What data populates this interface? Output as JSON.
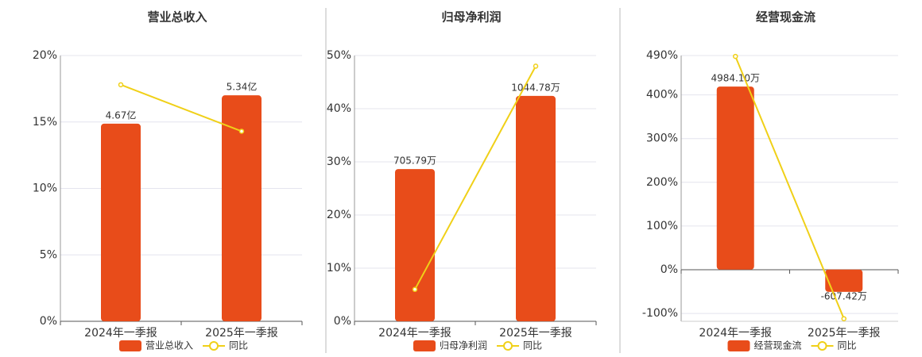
{
  "chart_data": [
    {
      "type": "bar",
      "title": "营业总收入",
      "categories": [
        "2024年一季报",
        "2025年一季报"
      ],
      "series": [
        {
          "name": "营业总收入",
          "color": "#e84c1a",
          "axis": "y2",
          "values": [
            4.67,
            5.34
          ],
          "value_labels": [
            "4.67亿",
            "5.34亿"
          ]
        },
        {
          "name": "同比",
          "type": "line",
          "color": "#f0d018",
          "values": [
            17.8,
            14.3
          ]
        }
      ],
      "ylim": [
        0,
        20
      ],
      "yticks": [
        {
          "value": 0,
          "label": "0%"
        },
        {
          "value": 5,
          "label": "5%"
        },
        {
          "value": 10,
          "label": "10%"
        },
        {
          "value": 15,
          "label": "15%"
        },
        {
          "value": 20,
          "label": "20%"
        }
      ],
      "y2lim": [
        0,
        6.28
      ],
      "grid": true
    },
    {
      "type": "bar",
      "title": "归母净利润",
      "categories": [
        "2024年一季报",
        "2025年一季报"
      ],
      "series": [
        {
          "name": "归母净利润",
          "color": "#e84c1a",
          "axis": "y2",
          "values": [
            705.79,
            1044.78
          ],
          "value_labels": [
            "705.79万",
            "1044.78万"
          ]
        },
        {
          "name": "同比",
          "type": "line",
          "color": "#f0d018",
          "values": [
            6.0,
            48.0
          ]
        }
      ],
      "ylim": [
        0,
        50
      ],
      "yticks": [
        {
          "value": 0,
          "label": "0%"
        },
        {
          "value": 10,
          "label": "10%"
        },
        {
          "value": 20,
          "label": "20%"
        },
        {
          "value": 30,
          "label": "30%"
        },
        {
          "value": 40,
          "label": "40%"
        },
        {
          "value": 50,
          "label": "50%"
        }
      ],
      "y2lim": [
        0,
        1232
      ],
      "grid": true
    },
    {
      "type": "bar",
      "title": "经营现金流",
      "categories": [
        "2024年一季报",
        "2025年一季报"
      ],
      "series": [
        {
          "name": "经营现金流",
          "color": "#e84c1a",
          "axis": "y2",
          "values": [
            4984.1,
            -607.42
          ],
          "value_labels": [
            "4984.10万",
            "-607.42万"
          ]
        },
        {
          "name": "同比",
          "type": "line",
          "color": "#f0d018",
          "values": [
            488,
            -112
          ]
        }
      ],
      "ylim": [
        -118,
        490
      ],
      "yticks": [
        {
          "value": -100,
          "label": "-100%"
        },
        {
          "value": 0,
          "label": "0%"
        },
        {
          "value": 100,
          "label": "100%"
        },
        {
          "value": 200,
          "label": "200%"
        },
        {
          "value": 300,
          "label": "300%"
        },
        {
          "value": 400,
          "label": "400%"
        },
        {
          "value": 490,
          "label": "490%"
        }
      ],
      "y2lim": [
        -1409,
        5829
      ],
      "grid": true
    }
  ]
}
